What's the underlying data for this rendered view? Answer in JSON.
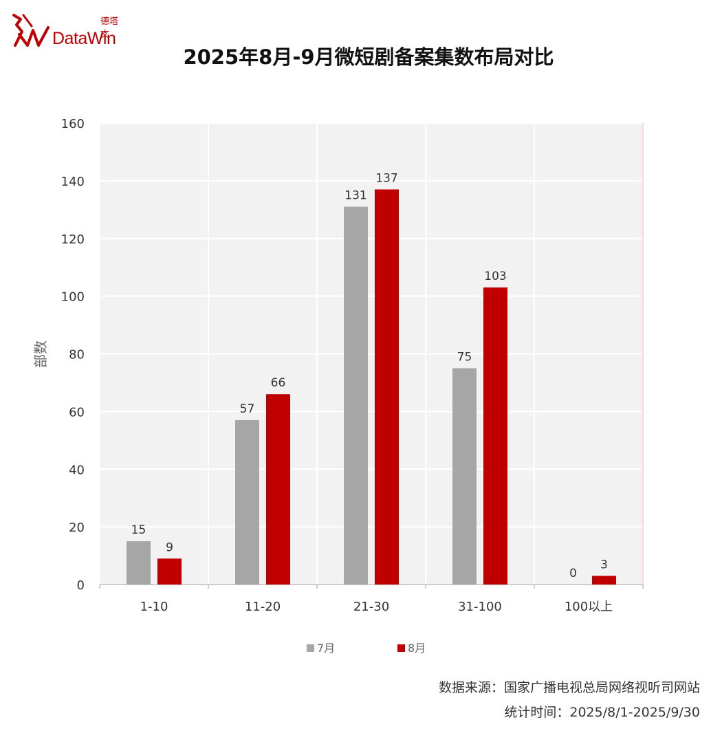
{
  "brand": {
    "cn_name": "德塔文",
    "en_name": "DataWin"
  },
  "title": "2025年8月-9月微短剧备案集数布局对比",
  "colors": {
    "series_a": "#a6a6a6",
    "series_b": "#c00000",
    "plot_bg": "#f2f2f2",
    "accent": "#c00000"
  },
  "chart_data": {
    "type": "bar",
    "categories": [
      "1-10",
      "11-20",
      "21-30",
      "31-100",
      "100以上"
    ],
    "series": [
      {
        "name": "7月",
        "values": [
          15,
          57,
          131,
          75,
          0
        ]
      },
      {
        "name": "8月",
        "values": [
          9,
          66,
          137,
          103,
          3
        ]
      }
    ],
    "ylabel": "部数",
    "xlabel": "",
    "ylim": [
      0,
      160
    ],
    "yticks": [
      0,
      20,
      40,
      60,
      80,
      100,
      120,
      140,
      160
    ],
    "grid": true,
    "legend_position": "bottom",
    "data_labels": true
  },
  "footer": {
    "source": "数据来源：国家广播电视总局网络视听司网站",
    "period": "统计时间：2025/8/1-2025/9/30"
  }
}
